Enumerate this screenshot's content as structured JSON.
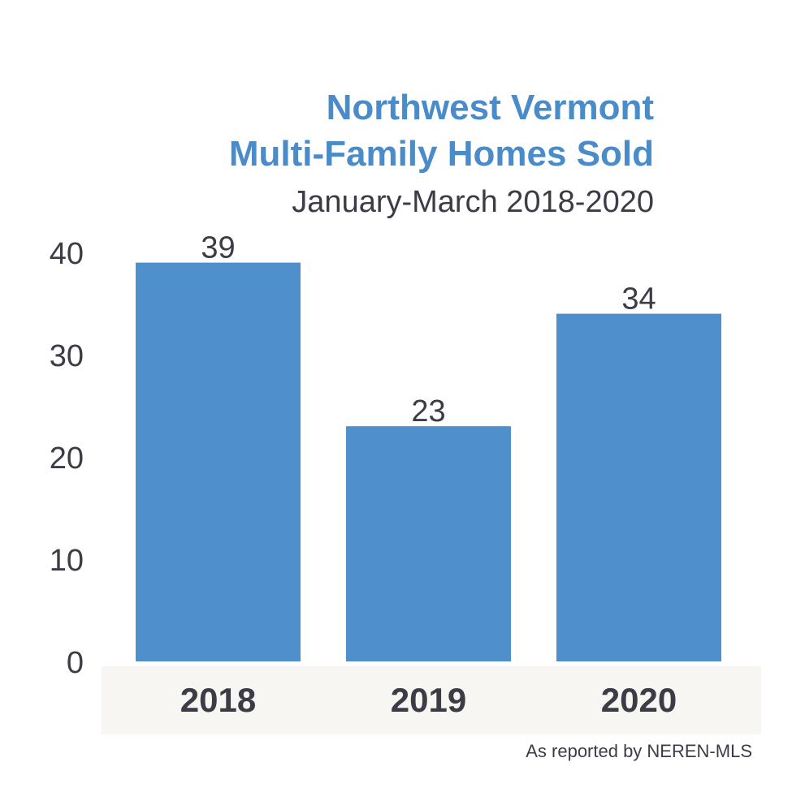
{
  "chart_data": {
    "type": "bar",
    "title_lines": [
      "Northwest Vermont",
      "Multi-Family Homes Sold"
    ],
    "subtitle": "January-March 2018-2020",
    "categories": [
      "2018",
      "2019",
      "2020"
    ],
    "values": [
      39,
      23,
      34
    ],
    "data_labels": [
      "39",
      "23",
      "34"
    ],
    "yticks": [
      "0",
      "10",
      "20",
      "30",
      "40"
    ],
    "ylim": [
      0,
      40
    ],
    "grid": false,
    "legend": "none",
    "source": "As reported by NEREN-MLS",
    "colors": {
      "bar": "#4f8fcc",
      "title": "#4a8bc9",
      "text": "#3c3c46",
      "category_band": "#f7f6f3"
    }
  }
}
